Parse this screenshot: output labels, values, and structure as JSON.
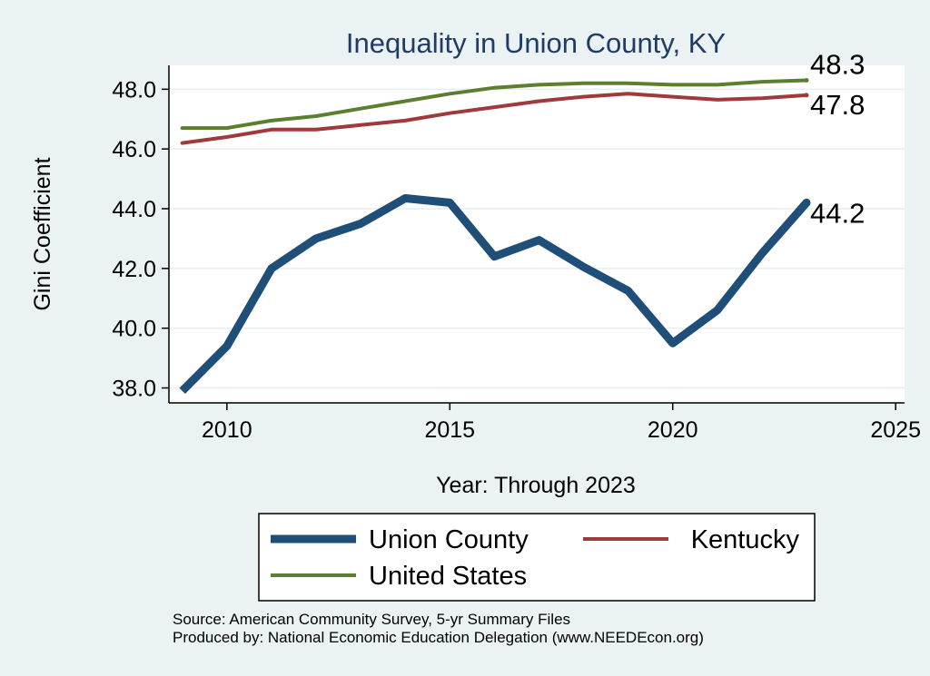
{
  "chart_data": {
    "type": "line",
    "title": "Inequality in Union County, KY",
    "xlabel": "Year: Through 2023",
    "ylabel": "Gini Coefficient",
    "xlim": [
      2008.7,
      2025.2
    ],
    "ylim": [
      37.5,
      48.8
    ],
    "x_ticks": [
      2010,
      2015,
      2020,
      2025
    ],
    "y_ticks": [
      38.0,
      40.0,
      42.0,
      44.0,
      46.0,
      48.0
    ],
    "y_tick_labels": [
      "38.0",
      "40.0",
      "42.0",
      "44.0",
      "46.0",
      "48.0"
    ],
    "grid": true,
    "legend_position": "bottom",
    "x": [
      2009,
      2010,
      2011,
      2012,
      2013,
      2014,
      2015,
      2016,
      2017,
      2018,
      2019,
      2020,
      2021,
      2022,
      2023
    ],
    "series": [
      {
        "name": "Union County",
        "color": "#1f4e79",
        "values": [
          37.9,
          39.4,
          42.0,
          43.0,
          43.5,
          44.35,
          44.2,
          42.4,
          42.95,
          42.05,
          41.25,
          39.5,
          40.6,
          42.5,
          44.2
        ],
        "end_label": "44.2"
      },
      {
        "name": "Kentucky",
        "color": "#a0393c",
        "values": [
          46.2,
          46.4,
          46.65,
          46.65,
          46.8,
          46.95,
          47.2,
          47.4,
          47.6,
          47.75,
          47.85,
          47.75,
          47.65,
          47.7,
          47.8
        ],
        "end_label": "47.8"
      },
      {
        "name": "United States",
        "color": "#5a7f2e",
        "values": [
          46.7,
          46.7,
          46.95,
          47.1,
          47.35,
          47.6,
          47.85,
          48.05,
          48.15,
          48.2,
          48.2,
          48.15,
          48.15,
          48.25,
          48.3
        ],
        "end_label": "48.3"
      }
    ],
    "source_lines": [
      "Source: American Community Survey, 5-yr Summary Files",
      "Produced by: National Economic Education Delegation (www.NEEDEcon.org)"
    ]
  }
}
